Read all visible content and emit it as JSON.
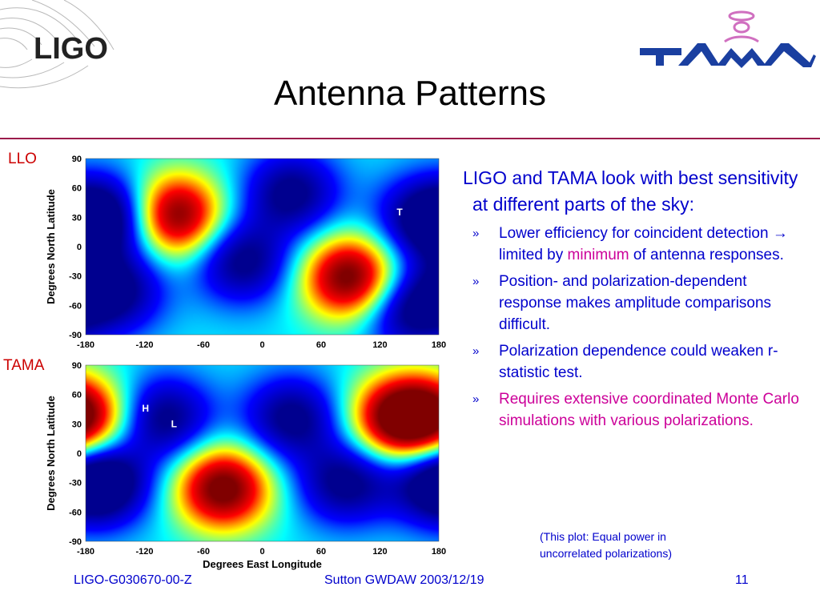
{
  "slide": {
    "title": "Antenna Patterns",
    "logo_left": "LIGO",
    "logo_right": "TAMA",
    "footer_left": "LIGO-G030670-00-Z",
    "footer_center": "Sutton GWDAW 2003/12/19",
    "footer_right": "11",
    "accent_color": "#9b1b4b"
  },
  "text": {
    "intro": "LIGO and TAMA look with best sensitivity at different parts of the sky:",
    "bullet_mark": "»",
    "bullet1_a": "Lower efficiency for coincident detection ",
    "bullet1_arrow": "→",
    "bullet1_b": " limited by ",
    "bullet1_highlight": "minimum",
    "bullet1_c": " of antenna responses.",
    "bullet2": "Position- and polarization-dependent response makes amplitude comparisons difficult.",
    "bullet3": "Polarization dependence could weaken r-statistic test.",
    "bullet4": "Requires extensive coordinated Monte Carlo simulations with various polarizations.",
    "note_line1": "(This plot: Equal power in",
    "note_line2": "uncorrelated polarizations)"
  },
  "chart_data": [
    {
      "type": "heatmap",
      "panel_label": "LLO",
      "title": "",
      "xlabel": "",
      "ylabel": "Degrees North Latitude",
      "xlim": [
        -180,
        180
      ],
      "ylim": [
        -90,
        90
      ],
      "xticks": [
        "-180",
        "-120",
        "-60",
        "0",
        "60",
        "120",
        "180"
      ],
      "yticks": [
        "90",
        "60",
        "30",
        "0",
        "-30",
        "-60",
        "-90"
      ],
      "markers": [
        {
          "label": "T",
          "lon": 140,
          "lat": 35
        }
      ],
      "colormap": [
        "#00008f",
        "#0000ff",
        "#00ffff",
        "#ffff00",
        "#ff0000",
        "#800000"
      ],
      "features": [
        {
          "lon": -90,
          "lat": 32,
          "level": 1.0,
          "kind": "max"
        },
        {
          "lon": 90,
          "lat": -32,
          "level": 1.0,
          "kind": "max"
        },
        {
          "lon": -150,
          "lat": 30,
          "level": 0.0,
          "kind": "min"
        },
        {
          "lon": -150,
          "lat": -45,
          "level": 0.0,
          "kind": "min"
        },
        {
          "lon": -20,
          "lat": -15,
          "level": 0.0,
          "kind": "min"
        },
        {
          "lon": 165,
          "lat": 28,
          "level": 0.0,
          "kind": "min"
        },
        {
          "lon": 30,
          "lat": 55,
          "level": 0.0,
          "kind": "min"
        },
        {
          "lon": 150,
          "lat": -65,
          "level": 0.0,
          "kind": "min"
        }
      ]
    },
    {
      "type": "heatmap",
      "panel_label": "TAMA",
      "title": "",
      "xlabel": "Degrees East Longitude",
      "ylabel": "Degrees North Latitude",
      "xlim": [
        -180,
        180
      ],
      "ylim": [
        -90,
        90
      ],
      "xticks": [
        "-180",
        "-120",
        "-60",
        "0",
        "60",
        "120",
        "180"
      ],
      "yticks": [
        "90",
        "60",
        "30",
        "0",
        "-30",
        "-60",
        "-90"
      ],
      "markers": [
        {
          "label": "H",
          "lon": -119,
          "lat": 46
        },
        {
          "label": "L",
          "lon": -90,
          "lat": 30
        }
      ],
      "colormap": [
        "#00008f",
        "#0000ff",
        "#00ffff",
        "#ffff00",
        "#ff0000",
        "#800000"
      ],
      "features": [
        {
          "lon": 140,
          "lat": 36,
          "level": 1.0,
          "kind": "max"
        },
        {
          "lon": -40,
          "lat": -36,
          "level": 1.0,
          "kind": "max"
        },
        {
          "lon": -180,
          "lat": 36,
          "level": 0.8,
          "kind": "max"
        },
        {
          "lon": -100,
          "lat": 36,
          "level": 0.0,
          "kind": "min"
        },
        {
          "lon": 30,
          "lat": 36,
          "level": 0.0,
          "kind": "min"
        },
        {
          "lon": -160,
          "lat": -30,
          "level": 0.0,
          "kind": "min"
        },
        {
          "lon": 85,
          "lat": -30,
          "level": 0.0,
          "kind": "min"
        },
        {
          "lon": 175,
          "lat": -30,
          "level": 0.1,
          "kind": "min"
        }
      ]
    }
  ]
}
